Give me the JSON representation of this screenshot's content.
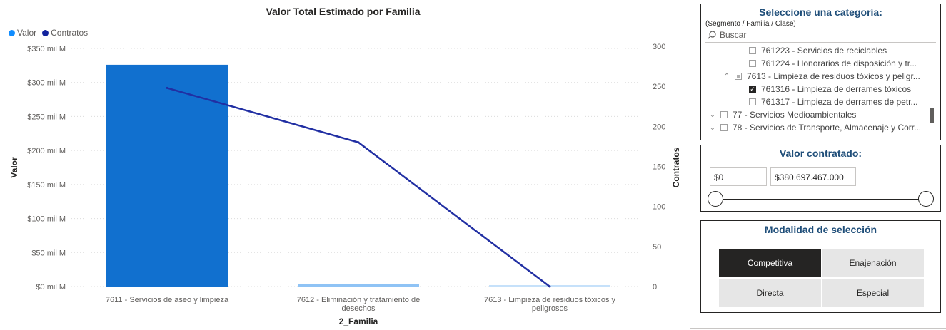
{
  "chart": {
    "title": "Valor Total Estimado por Familia",
    "legend": [
      {
        "label": "Valor",
        "color": "#118dff"
      },
      {
        "label": "Contratos",
        "color": "#12239e"
      }
    ]
  },
  "chart_data": {
    "type": "bar",
    "title": "Valor Total Estimado por Familia",
    "xlabel": "2_Familia",
    "ylabel": "Valor",
    "y2label": "Contratos",
    "categories": [
      [
        "7611 - Servicios de aseo y limpieza"
      ],
      [
        "7612 - Eliminación y tratamiento de",
        "desechos"
      ],
      [
        "7613 - Limpieza de residuos tóxicos y",
        "peligrosos"
      ]
    ],
    "series": [
      {
        "name": "Valor",
        "type": "bar",
        "axis": "left",
        "values": [
          326,
          4,
          1.5
        ],
        "colors": [
          "#1170cf",
          "#8fc3f5",
          "#c6e1fa"
        ]
      },
      {
        "name": "Contratos",
        "type": "line",
        "axis": "right",
        "values": [
          248,
          180,
          0
        ],
        "color": "#212fa3"
      }
    ],
    "y_ticks": [
      "$0 mil M",
      "$50 mil M",
      "$100 mil M",
      "$150 mil M",
      "$200 mil M",
      "$250 mil M",
      "$300 mil M",
      "$350 mil M"
    ],
    "y2_ticks": [
      "0",
      "50",
      "100",
      "150",
      "200",
      "250",
      "300"
    ],
    "ylim": [
      0,
      350
    ],
    "y2lim": [
      0,
      300
    ],
    "grid": true,
    "legend_position": "top-left"
  },
  "category_slicer": {
    "title": "Seleccione una categoría:",
    "subtitle": "(Segmento / Familia / Clase)",
    "search_placeholder": "Buscar",
    "items": [
      {
        "label": "761223 - Servicios de reciclables",
        "level": 2,
        "state": "unchecked",
        "chevron": ""
      },
      {
        "label": "761224 - Honorarios de disposición y tr...",
        "level": 2,
        "state": "unchecked",
        "chevron": ""
      },
      {
        "label": "7613 - Limpieza de residuos tóxicos y peligr...",
        "level": 1,
        "state": "partial",
        "chevron": "^"
      },
      {
        "label": "761316 - Limpieza de derrames tóxicos",
        "level": 2,
        "state": "checked",
        "chevron": ""
      },
      {
        "label": "761317 - Limpieza de derrames de petr...",
        "level": 2,
        "state": "unchecked",
        "chevron": ""
      },
      {
        "label": "77 - Servicios Medioambientales",
        "level": 0,
        "state": "unchecked",
        "chevron": "v"
      },
      {
        "label": "78 - Servicios de Transporte, Almacenaje y Corr...",
        "level": 0,
        "state": "unchecked",
        "chevron": "v"
      }
    ]
  },
  "value_slicer": {
    "title": "Valor contratado:",
    "min_value": "$0",
    "max_value": "$380.697.467.000",
    "range_fraction": [
      0,
      1
    ]
  },
  "modality": {
    "title": "Modalidad de selección",
    "options": [
      "Competitiva",
      "Enajenación",
      "Directa",
      "Especial"
    ],
    "selected": "Competitiva"
  }
}
